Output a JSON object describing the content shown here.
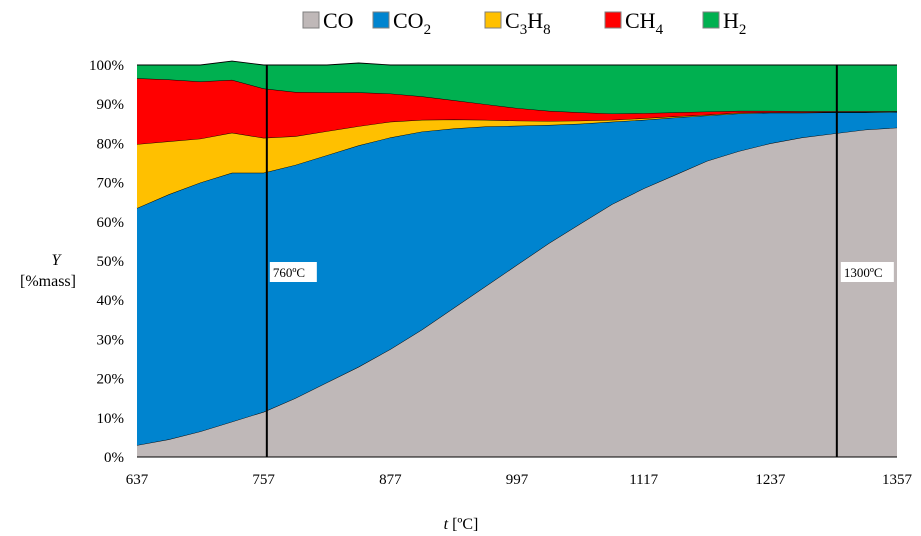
{
  "chart_data": {
    "type": "area",
    "stacked": true,
    "x": [
      637,
      667,
      697,
      727,
      757,
      787,
      817,
      847,
      877,
      907,
      937,
      967,
      997,
      1027,
      1057,
      1087,
      1117,
      1147,
      1177,
      1207,
      1237,
      1267,
      1297,
      1327,
      1357
    ],
    "series": [
      {
        "name": "CO",
        "legend_main": "CO",
        "legend_sub": "",
        "color": "#bfb8b8",
        "values": [
          3,
          4.5,
          6.5,
          9,
          11.5,
          15,
          19,
          23,
          27.5,
          32.5,
          38,
          43.5,
          49,
          54.5,
          59.5,
          64.5,
          68.5,
          72,
          75.5,
          78,
          80,
          81.5,
          82.5,
          83.5,
          84
        ]
      },
      {
        "name": "CO2",
        "legend_main": "CO",
        "legend_sub": "2",
        "color": "#0084cf",
        "values": [
          60.5,
          62.5,
          63.5,
          63.5,
          61,
          59.5,
          58,
          56.5,
          54,
          50.5,
          45.8,
          40.8,
          35.5,
          30.2,
          25.5,
          21,
          17.5,
          14.6,
          11.6,
          9.6,
          7.8,
          6.3,
          5.4,
          4.4,
          4
        ]
      },
      {
        "name": "C3H8",
        "legend_main": "C",
        "legend_sub": "3",
        "legend_main2": "H",
        "legend_sub2": "8",
        "color": "#ffc000",
        "values": [
          16.3,
          13.5,
          11.2,
          10.2,
          8.9,
          7.3,
          6.1,
          4.9,
          4,
          3,
          2.3,
          1.7,
          1.3,
          1,
          0.8,
          0.5,
          0.4,
          0.3,
          0.2,
          0.2,
          0.1,
          0.1,
          0.1,
          0.1,
          0.1
        ]
      },
      {
        "name": "CH4",
        "legend_main": "CH",
        "legend_sub": "4",
        "color": "#ff0000",
        "values": [
          16.8,
          15.8,
          14.6,
          13.5,
          12.6,
          11.3,
          9.9,
          8.6,
          7.2,
          6,
          4.9,
          4,
          3.2,
          2.6,
          2.1,
          1.6,
          1.3,
          1,
          0.8,
          0.5,
          0.4,
          0.3,
          0.2,
          0.2,
          0.1
        ]
      },
      {
        "name": "H2",
        "legend_main": "H",
        "legend_sub": "2",
        "color": "#00b050",
        "values": [
          3.4,
          3.7,
          4.2,
          4.8,
          6,
          6.9,
          7,
          7.5,
          7.3,
          8,
          9,
          10,
          11,
          11.7,
          12.1,
          12.4,
          12.3,
          12.1,
          11.9,
          11.7,
          11.7,
          11.8,
          11.8,
          11.8,
          11.8
        ]
      }
    ],
    "xlim": [
      637,
      1357
    ],
    "ylim": [
      0,
      100
    ],
    "x_ticks": [
      637,
      757,
      877,
      997,
      1117,
      1237,
      1357
    ],
    "y_ticks": [
      0,
      10,
      20,
      30,
      40,
      50,
      60,
      70,
      80,
      90,
      100
    ],
    "y_tick_suffix": "%",
    "ylabel_symbol": "Y",
    "ylabel_unit": "[%mass]",
    "xlabel_symbol": "t",
    "xlabel_unit": "[ºC]",
    "vertical_lines": [
      {
        "x": 760,
        "label": "760ºC"
      },
      {
        "x": 1300,
        "label": "1300ºC"
      }
    ],
    "legend_position": "top",
    "grid": false
  }
}
